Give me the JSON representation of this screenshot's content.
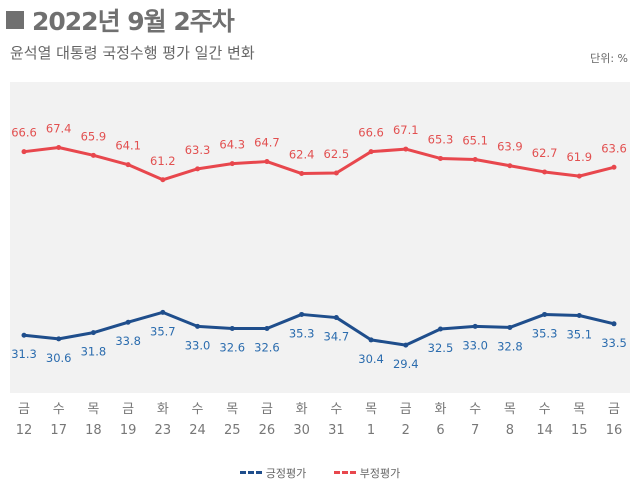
{
  "header": {
    "title": "2022년 9월 2주차",
    "subtitle": "윤석열 대통령 국정수행 평가 일간 변화",
    "unit": "단위: %"
  },
  "chart_data": {
    "type": "line",
    "title": "2022년 9월 2주차",
    "subtitle": "윤석열 대통령 국정수행 평가 일간 변화",
    "unit": "단위: %",
    "weekdays": [
      "금",
      "수",
      "목",
      "금",
      "화",
      "수",
      "목",
      "금",
      "화",
      "수",
      "목",
      "금",
      "화",
      "수",
      "목",
      "수",
      "목",
      "금"
    ],
    "categories": [
      "12",
      "17",
      "18",
      "19",
      "23",
      "24",
      "25",
      "26",
      "30",
      "31",
      "1",
      "2",
      "6",
      "7",
      "8",
      "14",
      "15",
      "16"
    ],
    "series": [
      {
        "name": "긍정평가",
        "color": "#1f4e8c",
        "label_color": "#2b6cae",
        "values": [
          31.3,
          30.6,
          31.8,
          33.8,
          35.7,
          33.0,
          32.6,
          32.6,
          35.3,
          34.7,
          30.4,
          29.4,
          32.5,
          33.0,
          32.8,
          35.3,
          35.1,
          33.5
        ]
      },
      {
        "name": "부정평가",
        "color": "#e8474d",
        "label_color": "#e25050",
        "values": [
          66.6,
          67.4,
          65.9,
          64.1,
          61.2,
          63.3,
          64.3,
          64.7,
          62.4,
          62.5,
          66.6,
          67.1,
          65.3,
          65.1,
          63.9,
          62.7,
          61.9,
          63.6
        ]
      }
    ],
    "grid": false,
    "legend": "bottom",
    "background": "#f2f2f2"
  }
}
